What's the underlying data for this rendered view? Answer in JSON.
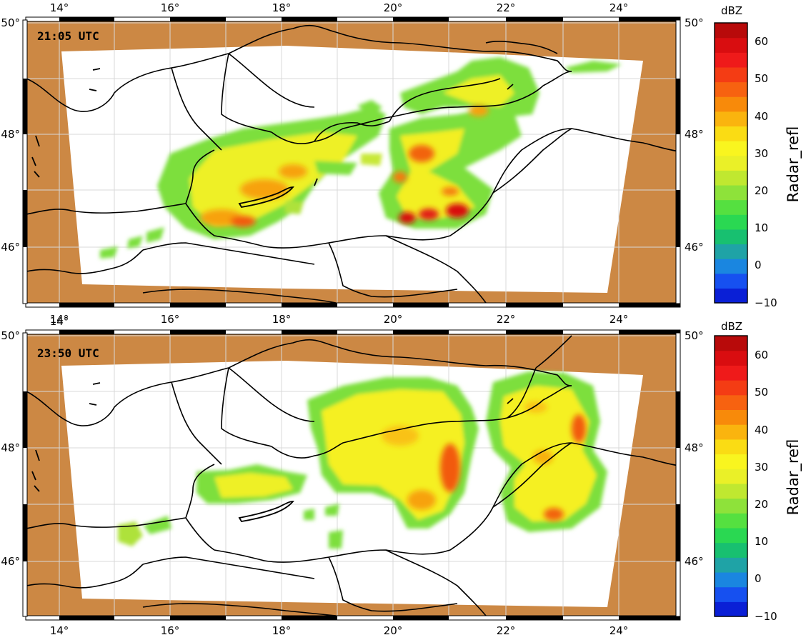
{
  "panels": [
    {
      "time_label": "21:05 UTC",
      "lon_labels": [
        "14°",
        "16°",
        "18°",
        "20°",
        "22°",
        "24°"
      ],
      "lat_labels": [
        "50°",
        "48°",
        "46°"
      ],
      "colorbar": {
        "unit": "dBZ",
        "title": "Radar_refl",
        "tick_labels": [
          "60",
          "50",
          "40",
          "30",
          "20",
          "10",
          "0",
          "−10"
        ]
      }
    },
    {
      "time_label": "23:50 UTC",
      "lon_labels": [
        "14°",
        "16°",
        "18°",
        "20°",
        "22°",
        "24°"
      ],
      "lat_labels": [
        "50°",
        "48°",
        "46°"
      ],
      "colorbar": {
        "unit": "dBZ",
        "title": "Radar_refl",
        "tick_labels": [
          "60",
          "50",
          "40",
          "30",
          "20",
          "10",
          "0",
          "−10"
        ]
      }
    }
  ],
  "map": {
    "lon_range": [
      13.5,
      25
    ],
    "lat_range": [
      45,
      50
    ],
    "outside_domain_color": "#cc8844",
    "gridline_color": "#d0d0d0"
  },
  "colorbar_scale": {
    "range": [
      -10,
      65
    ],
    "step": 5,
    "colors": [
      "#0a1fd6",
      "#1650f0",
      "#1a86e0",
      "#1fa3a6",
      "#18c070",
      "#2ad852",
      "#55e040",
      "#8ee23a",
      "#c0e830",
      "#eaf028",
      "#f9f51f",
      "#fadc14",
      "#fab40e",
      "#f88a0a",
      "#f76210",
      "#f43c14",
      "#ef1a1a",
      "#d90d10",
      "#b80a0a"
    ]
  },
  "legend_layout": "colorbar-right"
}
